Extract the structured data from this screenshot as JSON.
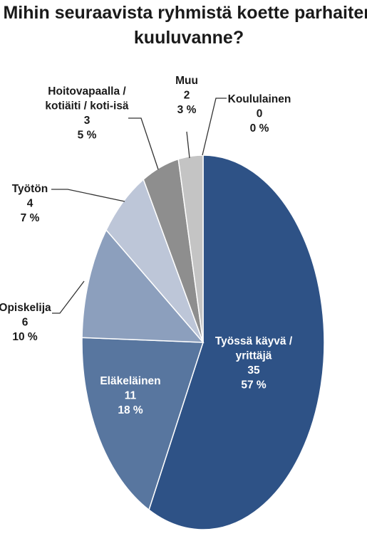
{
  "chart_data": {
    "type": "pie",
    "title_lines": [
      "Mihin seuraavista ryhmistä koette parhaiten",
      "kuuluvanne?"
    ],
    "slices": [
      {
        "name_lines": [
          "Työssä käyvä /",
          "yrittäjä"
        ],
        "count": "35",
        "percent": "57 %",
        "value": 35,
        "color": "#2e5286"
      },
      {
        "name_lines": [
          "Eläkeläinen"
        ],
        "count": "11",
        "percent": "18 %",
        "value": 11,
        "color": "#58769f"
      },
      {
        "name_lines": [
          "Opiskelija"
        ],
        "count": "6",
        "percent": "10 %",
        "value": 6,
        "color": "#8c9fbd"
      },
      {
        "name_lines": [
          "Työtön"
        ],
        "count": "4",
        "percent": "7 %",
        "value": 4,
        "color": "#bdc6d8"
      },
      {
        "name_lines": [
          "Hoitovapaalla /",
          "kotiäiti / koti-isä"
        ],
        "count": "3",
        "percent": "5 %",
        "value": 3,
        "color": "#8e8e8e"
      },
      {
        "name_lines": [
          "Muu"
        ],
        "count": "2",
        "percent": "3 %",
        "value": 2,
        "color": "#c4c4c4"
      },
      {
        "name_lines": [
          "Koululainen"
        ],
        "count": "0",
        "percent": "0 %",
        "value": 0,
        "color": "#e0e0e0"
      }
    ]
  }
}
